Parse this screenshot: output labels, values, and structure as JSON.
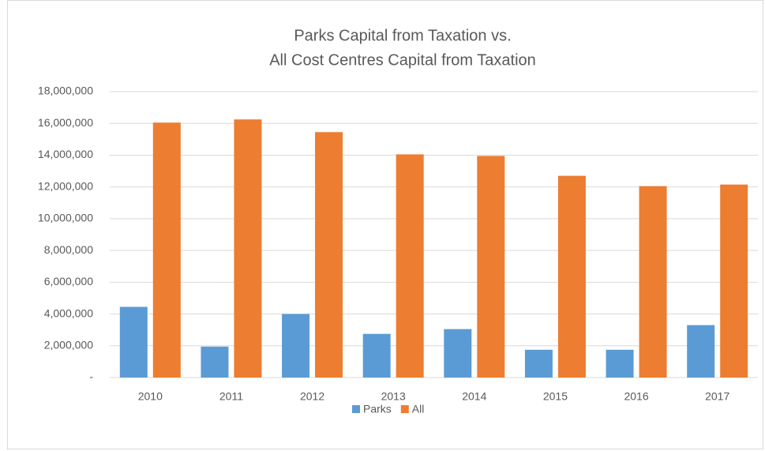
{
  "chart_data": {
    "type": "bar",
    "title": [
      "Parks Capital from Taxation vs.",
      "All Cost Centres Capital from Taxation"
    ],
    "categories": [
      "2010",
      "2011",
      "2012",
      "2013",
      "2014",
      "2015",
      "2016",
      "2017"
    ],
    "series": [
      {
        "name": "Parks",
        "color": "#5b9bd5",
        "values": [
          4450000,
          1950000,
          4000000,
          2750000,
          3050000,
          1750000,
          1750000,
          3300000
        ]
      },
      {
        "name": "All",
        "color": "#ed7d31",
        "values": [
          16050000,
          16250000,
          15450000,
          14050000,
          13950000,
          12700000,
          12050000,
          12150000
        ]
      }
    ],
    "ylim": [
      0,
      18000000
    ],
    "yticks": [
      {
        "value": 0,
        "label": "-"
      },
      {
        "value": 2000000,
        "label": "2,000,000"
      },
      {
        "value": 4000000,
        "label": "4,000,000"
      },
      {
        "value": 6000000,
        "label": "6,000,000"
      },
      {
        "value": 8000000,
        "label": "8,000,000"
      },
      {
        "value": 10000000,
        "label": "10,000,000"
      },
      {
        "value": 12000000,
        "label": "12,000,000"
      },
      {
        "value": 14000000,
        "label": "14,000,000"
      },
      {
        "value": 16000000,
        "label": "16,000,000"
      },
      {
        "value": 18000000,
        "label": "18,000,000"
      }
    ],
    "grid": true,
    "legend": "bottom"
  }
}
